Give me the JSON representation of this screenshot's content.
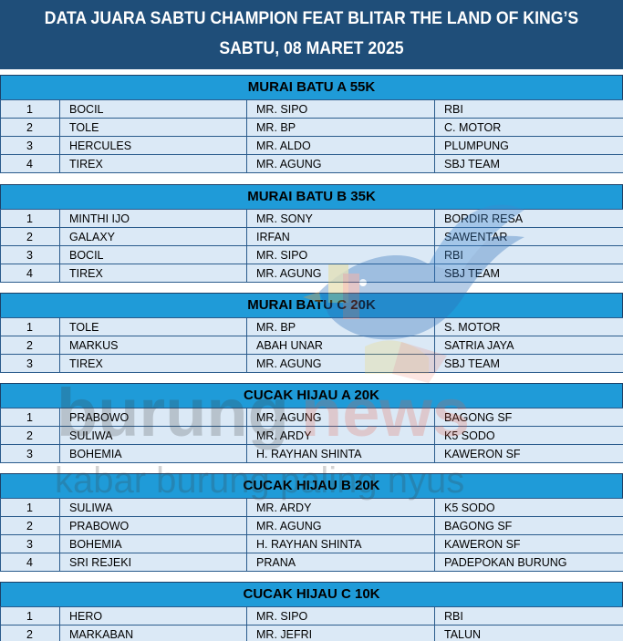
{
  "header": {
    "title": "DATA JUARA SABTU CHAMPION FEAT BLITAR THE LAND OF KING’S",
    "date": "SABTU, 08 MARET 2025"
  },
  "watermark": {
    "brand_part1": "burung",
    "brand_part2": "news",
    "tagline": "kabar burung paling nyus"
  },
  "categories": [
    {
      "title": "MURAI BATU A 55K",
      "rows": [
        [
          "1",
          "BOCIL",
          "MR. SIPO",
          "RBI"
        ],
        [
          "2",
          "TOLE",
          "MR. BP",
          "C. MOTOR"
        ],
        [
          "3",
          "HERCULES",
          "MR. ALDO",
          "PLUMPUNG"
        ],
        [
          "4",
          "TIREX",
          "MR. AGUNG",
          "SBJ TEAM"
        ]
      ]
    },
    {
      "title": "MURAI BATU B 35K",
      "rows": [
        [
          "1",
          "MINTHI IJO",
          "MR. SONY",
          "BORDIR RESA"
        ],
        [
          "2",
          "GALAXY",
          "IRFAN",
          "SAWENTAR"
        ],
        [
          "3",
          "BOCIL",
          "MR. SIPO",
          "RBI"
        ],
        [
          "4",
          "TIREX",
          "MR. AGUNG",
          "SBJ TEAM"
        ]
      ]
    },
    {
      "title": "MURAI BATU C 20K",
      "rows": [
        [
          "1",
          "TOLE",
          "MR. BP",
          "S. MOTOR"
        ],
        [
          "2",
          "MARKUS",
          "ABAH UNAR",
          "SATRIA JAYA"
        ],
        [
          "3",
          "TIREX",
          "MR. AGUNG",
          "SBJ TEAM"
        ]
      ]
    },
    {
      "title": "CUCAK HIJAU A 20K",
      "rows": [
        [
          "1",
          "PRABOWO",
          "MR. AGUNG",
          "BAGONG SF"
        ],
        [
          "2",
          "SULIWA",
          "MR. ARDY",
          "K5 SODO"
        ],
        [
          "3",
          "BOHEMIA",
          "H. RAYHAN SHINTA",
          "KAWERON SF"
        ]
      ]
    },
    {
      "title": "CUCAK HIJAU B 20K",
      "rows": [
        [
          "1",
          "SULIWA",
          "MR. ARDY",
          "K5 SODO"
        ],
        [
          "2",
          "PRABOWO",
          "MR. AGUNG",
          "BAGONG SF"
        ],
        [
          "3",
          "BOHEMIA",
          "H. RAYHAN SHINTA",
          "KAWERON SF"
        ],
        [
          "4",
          "SRI REJEKI",
          "PRANA",
          "PADEPOKAN BURUNG"
        ]
      ]
    },
    {
      "title": "CUCAK HIJAU C 10K",
      "rows": [
        [
          "1",
          "HERO",
          "MR. SIPO",
          "RBI"
        ],
        [
          "2",
          "MARKABAN",
          "MR. JEFRI",
          "TALUN"
        ]
      ]
    }
  ]
}
